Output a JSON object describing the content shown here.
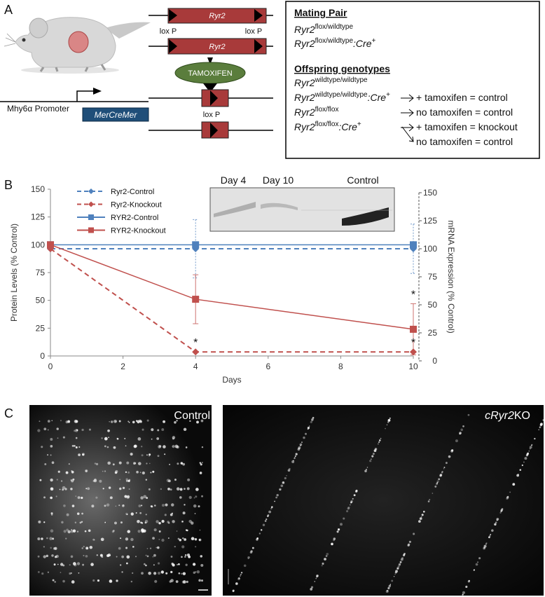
{
  "panel_a": {
    "label": "A",
    "constructs": {
      "gene": "Ryr2",
      "loxp": "lox P",
      "drug": "TAMOXIFEN",
      "promoter": "Mhy6α Promoter",
      "cre": "MerCreMer"
    },
    "box": {
      "mating_title": "Mating Pair",
      "mating_pair": [
        {
          "gene": "Ryr2",
          "sup": "flox/wildtype"
        },
        {
          "gene": "Ryr2",
          "sup": "flox/wildtype",
          "cre": ":Cre",
          "cre_sup": "+"
        }
      ],
      "offspring_title": "Offspring genotypes",
      "offspring": [
        {
          "gene": "Ryr2",
          "sup": "wildtype/wildtype"
        },
        {
          "gene": "Ryr2",
          "sup": "wildtype/wildtype",
          "cre": ":Cre",
          "cre_sup": "+",
          "outcomes": [
            "+ tamoxifen = control"
          ]
        },
        {
          "gene": "Ryr2",
          "sup": "flox/flox",
          "outcomes": [
            "no tamoxifen = control"
          ]
        },
        {
          "gene": "Ryr2",
          "sup": "flox/flox",
          "cre": ":Cre",
          "cre_sup": "+",
          "outcomes": [
            "+ tamoxifen = knockout",
            "no tamoxifen = control"
          ]
        }
      ]
    }
  },
  "chart_data": {
    "type": "line",
    "panel": "B",
    "x_label": "Days",
    "y_label": "Protein Levels (% Control)",
    "y2_label": "mRNA Expression (% Control)",
    "x": [
      0,
      4,
      10
    ],
    "xlim": [
      0,
      10
    ],
    "xticks": [
      0,
      2,
      4,
      6,
      8,
      10
    ],
    "ylim": [
      0,
      150
    ],
    "yticks": [
      0,
      25,
      50,
      75,
      100,
      125,
      150
    ],
    "y2lim": [
      0,
      150
    ],
    "y2ticks": [
      0,
      25,
      50,
      75,
      100,
      125,
      150
    ],
    "grid": false,
    "legend": "upper left",
    "series": [
      {
        "name": "Ryr2-Control",
        "color": "#4f81bd",
        "axis": "y2",
        "dashed": true,
        "marker": "diamond",
        "values": [
          100,
          100,
          100
        ],
        "errors": [
          null,
          26,
          22
        ]
      },
      {
        "name": "Ryr2-Knockout",
        "color": "#c0504d",
        "axis": "y2",
        "dashed": true,
        "marker": "diamond",
        "values": [
          100,
          8,
          8
        ],
        "errors": [
          null,
          null,
          null
        ]
      },
      {
        "name": "RYR2-Control",
        "color": "#4f81bd",
        "dashed": false,
        "marker": "square",
        "values": [
          100,
          100,
          100
        ],
        "errors": [
          null,
          null,
          null
        ]
      },
      {
        "name": "RYR2-Knockout",
        "color": "#c0504d",
        "dashed": false,
        "marker": "square",
        "values": [
          100,
          51,
          24
        ],
        "errors": [
          null,
          22,
          23
        ]
      }
    ],
    "annotations": [
      {
        "text": "*",
        "x": 4,
        "y": 8,
        "axis": "y2"
      },
      {
        "text": "*",
        "x": 10,
        "y": 47
      },
      {
        "text": "*",
        "x": 10,
        "y": 8,
        "axis": "y2"
      }
    ],
    "inset_labels": [
      "Day 4",
      "Day 10",
      "Control"
    ]
  },
  "panel_c": {
    "label": "C",
    "left_label": "Control",
    "right_label": {
      "prefix": "c",
      "gene": "Ryr2",
      "suffix": "KO"
    }
  }
}
